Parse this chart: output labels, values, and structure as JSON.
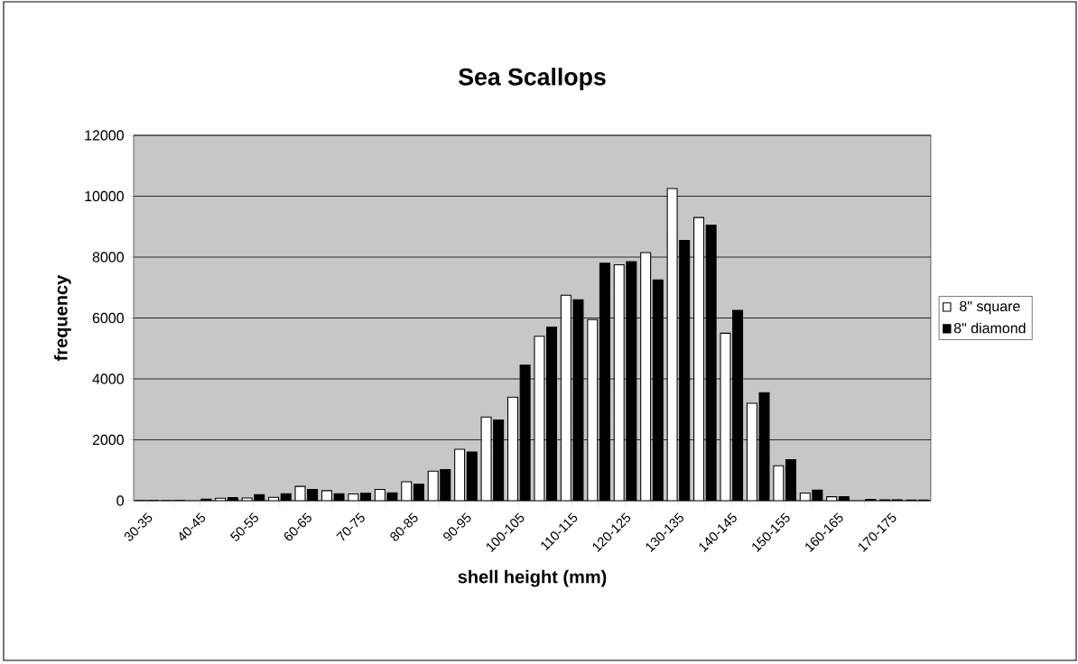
{
  "chart_data": {
    "type": "bar",
    "title": "Sea Scallops",
    "xlabel": "shell height (mm)",
    "ylabel": "frequency",
    "categories": [
      "30-35",
      null,
      "40-45",
      null,
      "50-55",
      null,
      "60-65",
      null,
      "70-75",
      null,
      "80-85",
      null,
      "90-95",
      null,
      "100-105",
      null,
      "110-115",
      null,
      "120-125",
      null,
      "130-135",
      null,
      "140-145",
      null,
      "150-155",
      null,
      "160-165",
      null,
      "170-175",
      null
    ],
    "series": [
      {
        "name": "8\" square",
        "color": "#ffffff",
        "values": [
          10,
          10,
          null,
          80,
          90,
          110,
          470,
          330,
          220,
          370,
          620,
          970,
          1690,
          2750,
          3400,
          5400,
          6750,
          5950,
          7750,
          8150,
          10250,
          9300,
          5500,
          3200,
          1150,
          250,
          130,
          null,
          30,
          20
        ]
      },
      {
        "name": "8\" diamond",
        "color": "#000000",
        "values": [
          10,
          10,
          50,
          100,
          200,
          230,
          370,
          230,
          240,
          260,
          540,
          1020,
          1600,
          2650,
          4450,
          5700,
          6600,
          7800,
          7850,
          7250,
          8550,
          9050,
          6250,
          3550,
          1350,
          350,
          130,
          40,
          30,
          20
        ]
      }
    ],
    "ylim": [
      0,
      12000
    ],
    "yticks": [
      0,
      2000,
      4000,
      6000,
      8000,
      10000,
      12000
    ],
    "grid": "y",
    "legend": "right"
  }
}
